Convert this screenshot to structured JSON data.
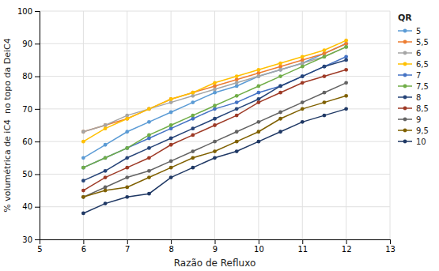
{
  "chart_data": {
    "type": "line",
    "x_label": "Razão de Refluxo",
    "y_label": "% volumétrica de iC4  no topo da DeiC4",
    "legend_title": "QR",
    "x": [
      6,
      6.5,
      7,
      7.5,
      8,
      8.5,
      9,
      9.5,
      10,
      10.5,
      11,
      11.5,
      12
    ],
    "series": [
      {
        "name": "5",
        "color": "#5B9BD5",
        "values": [
          55,
          59,
          63,
          66,
          69,
          72,
          75,
          77,
          80,
          82,
          84,
          87,
          90
        ]
      },
      {
        "name": "5,5",
        "color": "#ED7D31",
        "values": [
          63,
          65,
          67,
          70,
          73,
          75,
          77,
          79,
          81,
          83,
          85,
          87,
          90
        ]
      },
      {
        "name": "6",
        "color": "#A5A5A5",
        "values": [
          63,
          65,
          68,
          70,
          72,
          74,
          76,
          78,
          80,
          82,
          84,
          86,
          89
        ]
      },
      {
        "name": "6,5",
        "color": "#FFC000",
        "values": [
          60,
          64,
          67,
          70,
          73,
          75,
          78,
          80,
          82,
          84,
          86,
          88,
          91
        ]
      },
      {
        "name": "7",
        "color": "#4472C4",
        "values": [
          52,
          55,
          58,
          61,
          64,
          67,
          70,
          72,
          75,
          77,
          80,
          83,
          86
        ]
      },
      {
        "name": "7,5",
        "color": "#70AD47",
        "values": [
          52,
          55,
          58,
          62,
          65,
          68,
          71,
          74,
          77,
          80,
          83,
          86,
          89
        ]
      },
      {
        "name": "8",
        "color": "#264478",
        "values": [
          48,
          51,
          55,
          58,
          61,
          64,
          67,
          70,
          73,
          77,
          80,
          83,
          85
        ]
      },
      {
        "name": "8,5",
        "color": "#9E3A26",
        "values": [
          45,
          49,
          52,
          55,
          59,
          62,
          65,
          68,
          72,
          75,
          78,
          80,
          82
        ]
      },
      {
        "name": "9",
        "color": "#636363",
        "values": [
          43,
          46,
          49,
          51,
          54,
          57,
          60,
          63,
          66,
          69,
          72,
          75,
          78
        ]
      },
      {
        "name": "9,5",
        "color": "#7F6000",
        "values": [
          43,
          45,
          46,
          49,
          52,
          55,
          57,
          60,
          63,
          67,
          70,
          72,
          74
        ]
      },
      {
        "name": "10",
        "color": "#1F3864",
        "values": [
          38,
          41,
          43,
          44,
          49,
          52,
          55,
          57,
          60,
          63,
          66,
          68,
          70
        ]
      }
    ],
    "xlim": [
      5,
      13
    ],
    "ylim": [
      30,
      100
    ],
    "xticks": [
      5,
      6,
      7,
      8,
      9,
      10,
      11,
      12,
      13
    ],
    "yticks": [
      30,
      40,
      50,
      60,
      70,
      80,
      90,
      100
    ],
    "grid": true,
    "marker": "circle",
    "legend": "right"
  }
}
